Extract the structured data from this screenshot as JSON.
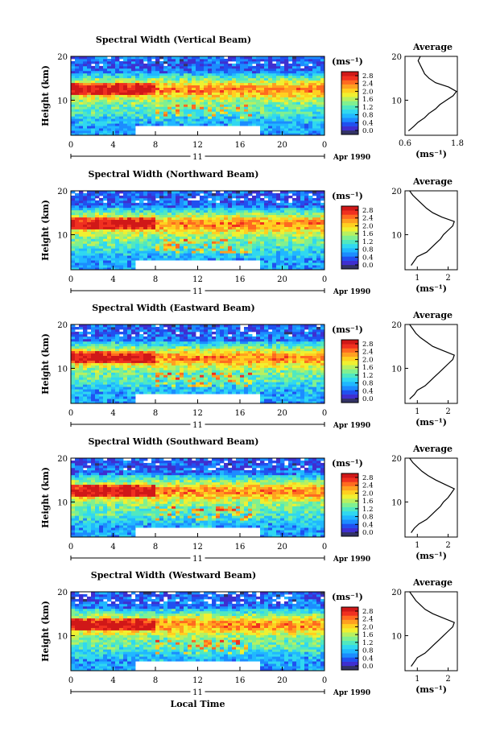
{
  "chart_data": {
    "type": "heatmap",
    "figure_xlabel": "Local Time",
    "date_label": "Apr 1990",
    "day_label": "11",
    "ylabel": "Height (km)",
    "colorbar": {
      "unit_label": "(ms⁻¹)",
      "ticks": [
        "2.8",
        "2.4",
        "2.0",
        "1.6",
        "1.2",
        "0.8",
        "0.4",
        "0.0"
      ],
      "colors": [
        "#333366",
        "#3f2fd0",
        "#2050f0",
        "#1c8cff",
        "#20b8ff",
        "#30d8f0",
        "#50e8c0",
        "#80f090",
        "#b8f060",
        "#f0f030",
        "#ffd020",
        "#ffa020",
        "#ff6a20",
        "#f03020",
        "#d01818"
      ]
    },
    "xlim": [
      0,
      24
    ],
    "x_ticks": [
      "0",
      "4",
      "8",
      "12",
      "16",
      "20",
      "0"
    ],
    "ylim": [
      2,
      20
    ],
    "y_ticks": [
      "20",
      "10"
    ],
    "panels": [
      {
        "title": "Spectral Width (Vertical Beam)",
        "profile": {
          "title": "Average",
          "xlabel": "(ms⁻¹)",
          "x_ticks": [
            {
              "label": "0.6",
              "value": 0.6
            },
            {
              "label": "1.8",
              "value": 1.8
            }
          ],
          "xlim": [
            0.6,
            1.8
          ],
          "heights": [
            3,
            4,
            5,
            6,
            7,
            8,
            9,
            10,
            11,
            12,
            13,
            14,
            15,
            16,
            17,
            18,
            19,
            20
          ],
          "values": [
            0.68,
            0.8,
            0.9,
            1.05,
            1.15,
            1.3,
            1.4,
            1.55,
            1.7,
            1.78,
            1.6,
            1.3,
            1.15,
            1.05,
            1.0,
            0.95,
            0.9,
            0.95
          ]
        }
      },
      {
        "title": "Spectral Width (Northward Beam)",
        "profile": {
          "title": "Average",
          "xlabel": "(ms⁻¹)",
          "x_ticks": [
            {
              "label": "1",
              "value": 1
            },
            {
              "label": "2",
              "value": 2
            }
          ],
          "xlim": [
            0.6,
            2.3
          ],
          "heights": [
            3,
            4,
            5,
            6,
            7,
            8,
            9,
            10,
            11,
            12,
            13,
            14,
            15,
            16,
            17,
            18,
            19,
            20
          ],
          "values": [
            0.8,
            0.9,
            1.0,
            1.3,
            1.45,
            1.6,
            1.75,
            1.85,
            2.0,
            2.15,
            2.2,
            1.8,
            1.5,
            1.3,
            1.15,
            1.0,
            0.85,
            0.75
          ]
        }
      },
      {
        "title": "Spectral Width (Eastward Beam)",
        "profile": {
          "title": "Average",
          "xlabel": "(ms⁻¹)",
          "x_ticks": [
            {
              "label": "1",
              "value": 1
            },
            {
              "label": "2",
              "value": 2
            }
          ],
          "xlim": [
            0.6,
            2.3
          ],
          "heights": [
            3,
            4,
            5,
            6,
            7,
            8,
            9,
            10,
            11,
            12,
            13,
            14,
            15,
            16,
            17,
            18,
            19,
            20
          ],
          "values": [
            0.75,
            0.9,
            1.0,
            1.25,
            1.4,
            1.55,
            1.7,
            1.85,
            2.0,
            2.15,
            2.2,
            1.85,
            1.5,
            1.3,
            1.1,
            0.95,
            0.85,
            0.75
          ]
        }
      },
      {
        "title": "Spectral Width (Southward Beam)",
        "profile": {
          "title": "Average",
          "xlabel": "(ms⁻¹)",
          "x_ticks": [
            {
              "label": "1",
              "value": 1
            },
            {
              "label": "2",
              "value": 2
            }
          ],
          "xlim": [
            0.6,
            2.3
          ],
          "heights": [
            3,
            4,
            5,
            6,
            7,
            8,
            9,
            10,
            11,
            12,
            13,
            14,
            15,
            16,
            17,
            18,
            19,
            20
          ],
          "values": [
            0.8,
            0.9,
            1.05,
            1.3,
            1.45,
            1.6,
            1.75,
            1.85,
            2.0,
            2.1,
            2.2,
            1.9,
            1.6,
            1.35,
            1.15,
            1.0,
            0.85,
            0.75
          ]
        }
      },
      {
        "title": "Spectral Width (Westward Beam)",
        "profile": {
          "title": "Average",
          "xlabel": "(ms⁻¹)",
          "x_ticks": [
            {
              "label": "1",
              "value": 1
            },
            {
              "label": "2",
              "value": 2
            }
          ],
          "xlim": [
            0.6,
            2.3
          ],
          "heights": [
            3,
            4,
            5,
            6,
            7,
            8,
            9,
            10,
            11,
            12,
            13,
            14,
            15,
            16,
            17,
            18,
            19,
            20
          ],
          "values": [
            0.8,
            0.9,
            1.0,
            1.25,
            1.4,
            1.55,
            1.7,
            1.85,
            2.0,
            2.15,
            2.2,
            1.85,
            1.5,
            1.25,
            1.1,
            0.95,
            0.85,
            0.75
          ]
        }
      }
    ]
  }
}
